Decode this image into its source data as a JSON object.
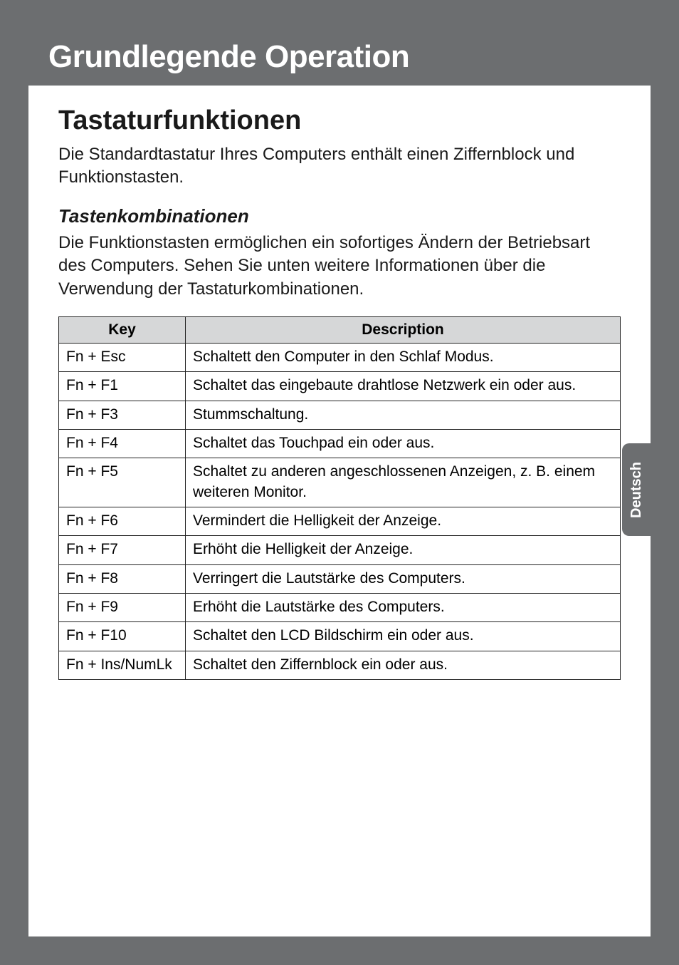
{
  "banner": {
    "title": "Grundlegende Operation"
  },
  "section": {
    "heading": "Tastaturfunktionen",
    "intro": "Die Standardtastatur Ihres Computers enthält einen Ziffernblock und Funktionstasten.",
    "subheading": "Tastenkombinationen",
    "subintro": "Die Funktionstasten ermöglichen ein sofortiges Ändern der Betriebsart des Computers. Sehen Sie unten weitere Informationen über die Verwendung der Tastaturkombinationen."
  },
  "table": {
    "headers": {
      "key": "Key",
      "desc": "Description"
    },
    "rows": [
      {
        "key": "Fn + Esc",
        "desc": "Schaltett den Computer in den Schlaf Modus."
      },
      {
        "key": "Fn + F1",
        "desc": "Schaltet das eingebaute drahtlose Netzwerk ein oder aus."
      },
      {
        "key": "Fn + F3",
        "desc": "Stummschaltung."
      },
      {
        "key": "Fn + F4",
        "desc": "Schaltet das Touchpad ein oder aus."
      },
      {
        "key": "Fn + F5",
        "desc": "Schaltet zu anderen angeschlossenen Anzeigen, z. B. einem weiteren Monitor."
      },
      {
        "key": "Fn + F6",
        "desc": "Vermindert die Helligkeit der Anzeige."
      },
      {
        "key": "Fn + F7",
        "desc": "Erhöht die Helligkeit der Anzeige."
      },
      {
        "key": "Fn + F8",
        "desc": "Verringert die Lautstärke des Computers."
      },
      {
        "key": "Fn + F9",
        "desc": "Erhöht die Lautstärke des Computers."
      },
      {
        "key": "Fn + F10",
        "desc": "Schaltet den LCD Bildschirm ein oder aus."
      },
      {
        "key": "Fn + Ins/NumLk",
        "desc": "Schaltet den Ziffernblock ein oder aus."
      }
    ]
  },
  "sidetab": {
    "label": "Deutsch"
  },
  "colors": {
    "page_bg": "#ffffff",
    "outer_bg": "#6c6e70",
    "banner_bg": "#6c6e70",
    "banner_text": "#ffffff",
    "th_bg": "#d6d7d8",
    "border": "#232323",
    "text": "#1a1a1a"
  }
}
